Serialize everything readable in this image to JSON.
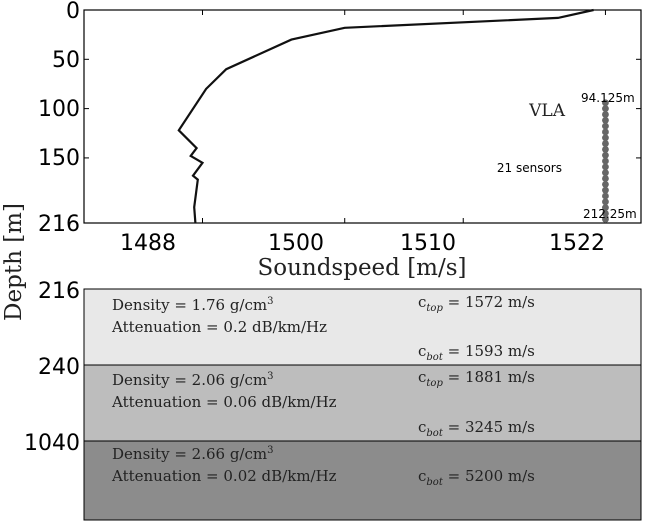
{
  "chart_data": {
    "type": "line",
    "xlabel": "Soundspeed [m/s]",
    "ylabel": "Depth [m]",
    "xticks": [
      "1488",
      "1500",
      "1510",
      "1522"
    ],
    "yticks": [
      "0",
      "50",
      "100",
      "150",
      "216"
    ],
    "xlim": [
      1478,
      1525
    ],
    "ylim": [
      216,
      0
    ],
    "series": [
      {
        "x": [
          1521.0,
          1518.0,
          1500.0,
          1495.5,
          1490.0,
          1488.3,
          1486.0,
          1487.5,
          1487.0,
          1488.0,
          1487.2,
          1487.6,
          1487.3,
          1487.4
        ],
        "y": [
          0,
          8,
          18,
          30,
          60,
          80,
          122,
          140,
          148,
          155,
          168,
          172,
          200,
          216
        ]
      }
    ],
    "array": {
      "name": "VLA",
      "sensors_label": "21 sensors",
      "top_label": "94.125m",
      "bottom_label": "212.25m",
      "x": 1522,
      "top": 94.125,
      "bottom": 212.25,
      "count": 21
    }
  },
  "layers": [
    {
      "top_tick": "216",
      "density": "Density = 1.76 g/cm",
      "attenuation": "Attenuation = 0.2 dB/km/Hz",
      "ctop_value": " = 1572 m/s",
      "cbot_value": " = 1593 m/s",
      "color": "#e8e8e8"
    },
    {
      "top_tick": "240",
      "density": "Density = 2.06 g/cm",
      "attenuation": "Attenuation = 0.06 dB/km/Hz",
      "ctop_value": " = 1881 m/s",
      "cbot_value": " = 3245 m/s",
      "color": "#bdbdbd"
    },
    {
      "top_tick": "1040",
      "density": "Density = 2.66 g/cm",
      "attenuation": "Attenuation = 0.02 dB/km/Hz",
      "ctop_value": "",
      "cbot_value": " = 5200 m/s",
      "color": "#8c8c8c"
    }
  ],
  "symbols": {
    "c": "c",
    "top": "top",
    "bot": "bot",
    "cube": "3"
  }
}
